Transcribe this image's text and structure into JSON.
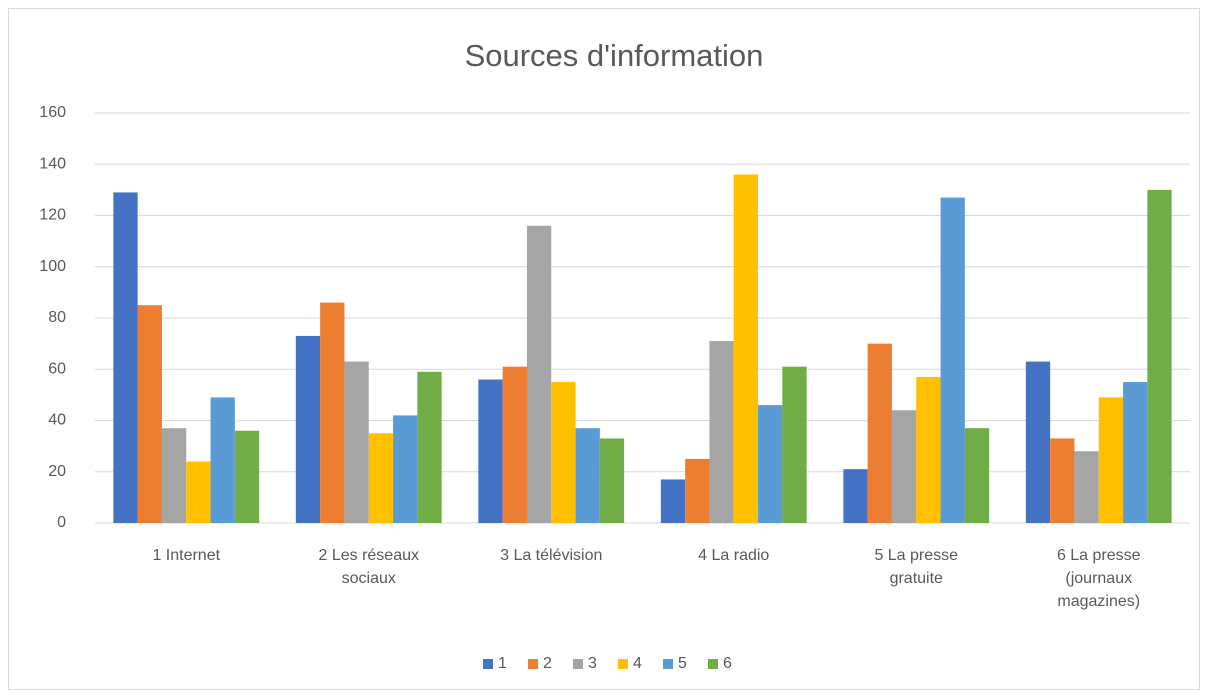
{
  "chart_data": {
    "type": "bar",
    "title": "Sources d'information",
    "categories": [
      "1 Internet",
      "2 Les réseaux sociaux",
      "3 La télévision",
      "4 La radio",
      "5 La presse gratuite",
      "6 La presse (journaux magazines)"
    ],
    "series": [
      {
        "name": "1",
        "color": "#4472c4",
        "values": [
          129,
          73,
          56,
          17,
          21,
          63
        ]
      },
      {
        "name": "2",
        "color": "#ed7d31",
        "values": [
          85,
          86,
          61,
          25,
          70,
          33
        ]
      },
      {
        "name": "3",
        "color": "#a5a5a5",
        "values": [
          37,
          63,
          116,
          71,
          44,
          28
        ]
      },
      {
        "name": "4",
        "color": "#ffc000",
        "values": [
          24,
          35,
          55,
          136,
          57,
          49
        ]
      },
      {
        "name": "5",
        "color": "#5b9bd5",
        "values": [
          49,
          42,
          37,
          46,
          127,
          55
        ]
      },
      {
        "name": "6",
        "color": "#70ad47",
        "values": [
          36,
          59,
          33,
          61,
          37,
          130
        ]
      }
    ],
    "ylim": [
      0,
      160
    ],
    "yticks": [
      0,
      20,
      40,
      60,
      80,
      100,
      120,
      140,
      160
    ],
    "grid": true,
    "legend": "bottom"
  }
}
